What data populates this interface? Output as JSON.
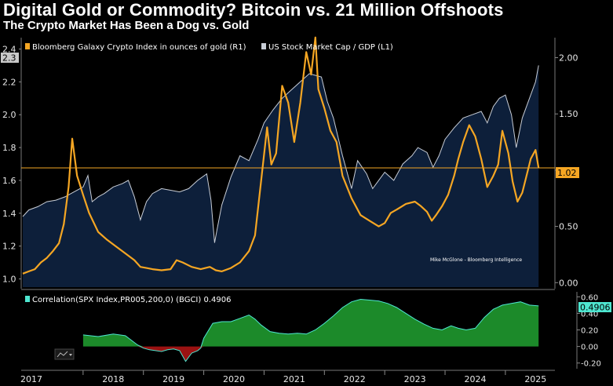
{
  "title": "Digital Gold or Commodity? Bitcoin vs. 21 Million Offshoots",
  "subtitle": "The Crypto Market Has Been a Dog vs. Gold",
  "credit": "Mike McGlone - Bloomberg Intelligence",
  "colors": {
    "background": "#000000",
    "area_fill": "#0d1f3a",
    "gdp_line": "#c8cdd6",
    "gold_line": "#f5a623",
    "corr_pos": "#1c8a2a",
    "corr_neg": "#9a1212",
    "corr_line": "#4ee6d0"
  },
  "chart_data": [
    {
      "type": "line",
      "x_labels": [
        "2017",
        "2018",
        "2019",
        "2020",
        "2021",
        "2022",
        "2023",
        "2024",
        "2025"
      ],
      "series": [
        {
          "name": "US Stock Market Cap / GDP  (L1)",
          "axis": "left",
          "render": "area",
          "x": [
            2017.0,
            2017.1,
            2017.25,
            2017.4,
            2017.55,
            2017.7,
            2017.85,
            2018.0,
            2018.08,
            2018.15,
            2018.25,
            2018.35,
            2018.5,
            2018.65,
            2018.75,
            2018.85,
            2018.95,
            2019.05,
            2019.15,
            2019.3,
            2019.45,
            2019.6,
            2019.75,
            2019.9,
            2020.05,
            2020.12,
            2020.18,
            2020.22,
            2020.3,
            2020.45,
            2020.6,
            2020.75,
            2020.9,
            2021.0,
            2021.15,
            2021.3,
            2021.45,
            2021.6,
            2021.75,
            2021.85,
            2021.95,
            2022.05,
            2022.15,
            2022.3,
            2022.45,
            2022.55,
            2022.7,
            2022.8,
            2022.9,
            2023.0,
            2023.15,
            2023.3,
            2023.45,
            2023.55,
            2023.7,
            2023.8,
            2023.9,
            2024.0,
            2024.15,
            2024.3,
            2024.45,
            2024.6,
            2024.7,
            2024.8,
            2024.9,
            2025.0,
            2025.1,
            2025.18,
            2025.28,
            2025.4,
            2025.5,
            2025.55
          ],
          "values": [
            1.38,
            1.42,
            1.44,
            1.47,
            1.48,
            1.5,
            1.53,
            1.56,
            1.63,
            1.47,
            1.5,
            1.52,
            1.56,
            1.58,
            1.6,
            1.5,
            1.36,
            1.47,
            1.52,
            1.55,
            1.54,
            1.53,
            1.55,
            1.6,
            1.64,
            1.48,
            1.22,
            1.3,
            1.45,
            1.62,
            1.75,
            1.72,
            1.85,
            1.95,
            2.03,
            2.1,
            2.15,
            2.2,
            2.25,
            2.24,
            2.23,
            2.08,
            1.98,
            1.75,
            1.55,
            1.72,
            1.64,
            1.55,
            1.6,
            1.65,
            1.6,
            1.7,
            1.75,
            1.8,
            1.77,
            1.68,
            1.75,
            1.85,
            1.92,
            1.98,
            2.0,
            2.02,
            1.95,
            2.05,
            2.1,
            2.12,
            2.0,
            1.8,
            1.98,
            2.1,
            2.2,
            2.3
          ]
        },
        {
          "name": "Bloomberg Galaxy Crypto Index in ounces of gold (R1)",
          "axis": "right",
          "x": [
            2017.0,
            2017.1,
            2017.2,
            2017.3,
            2017.4,
            2017.5,
            2017.6,
            2017.68,
            2017.76,
            2017.82,
            2017.9,
            2018.0,
            2018.1,
            2018.25,
            2018.4,
            2018.55,
            2018.7,
            2018.85,
            2018.95,
            2019.05,
            2019.15,
            2019.3,
            2019.45,
            2019.55,
            2019.65,
            2019.8,
            2019.95,
            2020.1,
            2020.2,
            2020.3,
            2020.45,
            2020.6,
            2020.75,
            2020.85,
            2020.95,
            2021.05,
            2021.12,
            2021.2,
            2021.3,
            2021.4,
            2021.5,
            2021.6,
            2021.7,
            2021.78,
            2021.85,
            2021.9,
            2022.0,
            2022.1,
            2022.2,
            2022.3,
            2022.45,
            2022.6,
            2022.75,
            2022.9,
            2023.0,
            2023.1,
            2023.2,
            2023.35,
            2023.5,
            2023.6,
            2023.7,
            2023.78,
            2023.85,
            2023.95,
            2024.05,
            2024.15,
            2024.22,
            2024.3,
            2024.4,
            2024.5,
            2024.6,
            2024.7,
            2024.8,
            2024.88,
            2024.95,
            2025.05,
            2025.12,
            2025.2,
            2025.28,
            2025.35,
            2025.42,
            2025.5,
            2025.55
          ],
          "values": [
            0.08,
            0.1,
            0.12,
            0.18,
            0.22,
            0.28,
            0.35,
            0.52,
            0.85,
            1.28,
            0.95,
            0.78,
            0.62,
            0.45,
            0.38,
            0.32,
            0.26,
            0.2,
            0.14,
            0.13,
            0.12,
            0.11,
            0.12,
            0.2,
            0.18,
            0.14,
            0.12,
            0.14,
            0.11,
            0.1,
            0.13,
            0.18,
            0.28,
            0.42,
            0.9,
            1.38,
            1.05,
            1.15,
            1.75,
            1.6,
            1.25,
            1.6,
            2.05,
            1.85,
            2.18,
            1.72,
            1.55,
            1.35,
            1.25,
            0.95,
            0.75,
            0.6,
            0.55,
            0.5,
            0.53,
            0.62,
            0.65,
            0.7,
            0.72,
            0.68,
            0.63,
            0.55,
            0.6,
            0.68,
            0.78,
            0.95,
            1.1,
            1.25,
            1.4,
            1.3,
            1.1,
            0.85,
            0.95,
            1.05,
            1.35,
            1.15,
            0.9,
            0.72,
            0.8,
            0.95,
            1.1,
            1.18,
            1.02
          ]
        },
        {
          "name": "Correlation(SPX Index,PR005,200,0) (BGCI) 0.4906",
          "axis": "lower",
          "x": [
            2018.0,
            2018.25,
            2018.5,
            2018.7,
            2018.9,
            2019.0,
            2019.1,
            2019.2,
            2019.3,
            2019.4,
            2019.5,
            2019.6,
            2019.7,
            2019.8,
            2019.9,
            2019.95,
            2020.0,
            2020.15,
            2020.3,
            2020.45,
            2020.6,
            2020.75,
            2020.85,
            2020.95,
            2021.1,
            2021.25,
            2021.4,
            2021.55,
            2021.7,
            2021.85,
            2022.0,
            2022.15,
            2022.3,
            2022.45,
            2022.6,
            2022.75,
            2022.9,
            2023.05,
            2023.2,
            2023.35,
            2023.5,
            2023.65,
            2023.8,
            2023.95,
            2024.1,
            2024.22,
            2024.35,
            2024.5,
            2024.65,
            2024.8,
            2024.95,
            2025.1,
            2025.25,
            2025.4,
            2025.55
          ],
          "values": [
            0.14,
            0.12,
            0.15,
            0.13,
            0.02,
            -0.02,
            -0.04,
            -0.05,
            -0.06,
            -0.04,
            -0.03,
            -0.05,
            -0.18,
            -0.08,
            -0.05,
            -0.02,
            0.1,
            0.28,
            0.3,
            0.3,
            0.34,
            0.38,
            0.33,
            0.26,
            0.18,
            0.16,
            0.15,
            0.16,
            0.15,
            0.2,
            0.28,
            0.37,
            0.47,
            0.54,
            0.57,
            0.56,
            0.55,
            0.52,
            0.47,
            0.4,
            0.33,
            0.27,
            0.22,
            0.2,
            0.25,
            0.22,
            0.2,
            0.22,
            0.35,
            0.45,
            0.5,
            0.52,
            0.54,
            0.5,
            0.49
          ]
        }
      ],
      "reference_line": {
        "axis": "right",
        "value": 1.02,
        "label": "1.02"
      },
      "axes": {
        "left": {
          "ylim": [
            0.95,
            2.45
          ],
          "ticks": [
            "1.0",
            "1.2",
            "1.4",
            "1.6",
            "1.8",
            "2.0",
            "2.2",
            "2.4"
          ],
          "last_badge": "2.3"
        },
        "right": {
          "ylim": [
            -0.04,
            2.15
          ],
          "ticks": [
            "0.00",
            "0.50",
            "1.00",
            "1.50",
            "2.00"
          ]
        },
        "lower": {
          "ylim": [
            -0.25,
            0.66
          ],
          "ticks": [
            "-0.20",
            "0.00",
            "0.20",
            "0.40",
            "0.60"
          ],
          "last_badge": "0.4906"
        }
      },
      "legend": {
        "placement": "top-left"
      },
      "grid": false
    }
  ]
}
